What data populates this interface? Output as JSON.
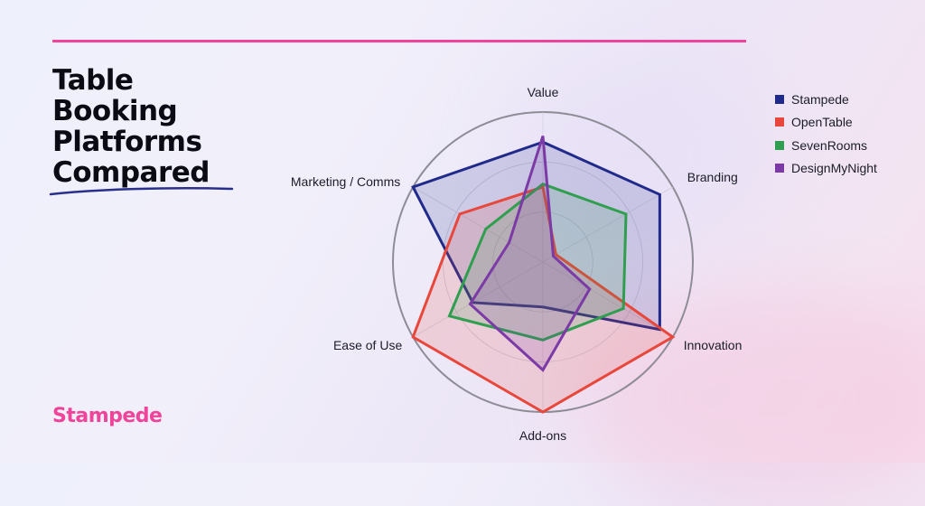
{
  "header": {
    "title_lines": [
      "Table",
      "Booking",
      "Platforms",
      "Compared"
    ]
  },
  "brand": {
    "name": "Stampede"
  },
  "colors": {
    "accent": "#f0449a",
    "title": "#0b0b14"
  },
  "chart_data": {
    "type": "radar",
    "categories": [
      "Value",
      "Branding",
      "Innovation",
      "Add-ons",
      "Ease of Use",
      "Marketing / Comms"
    ],
    "rlim": [
      0,
      5
    ],
    "grid": true,
    "legend_position": "top-right",
    "series": [
      {
        "name": "Stampede",
        "color": "#1f2a8a",
        "values": [
          4,
          4.5,
          4.5,
          1.5,
          2.7,
          5
        ]
      },
      {
        "name": "OpenTable",
        "color": "#e8473b",
        "values": [
          2.5,
          0.5,
          5,
          5,
          5,
          3.2
        ]
      },
      {
        "name": "SevenRooms",
        "color": "#2f9e4f",
        "values": [
          2.6,
          3.2,
          3.1,
          2.6,
          3.6,
          2.2
        ]
      },
      {
        "name": "DesignMyNight",
        "color": "#7b3aa5",
        "values": [
          4.2,
          0.4,
          1.8,
          3.6,
          2.8,
          1.3
        ]
      }
    ]
  }
}
